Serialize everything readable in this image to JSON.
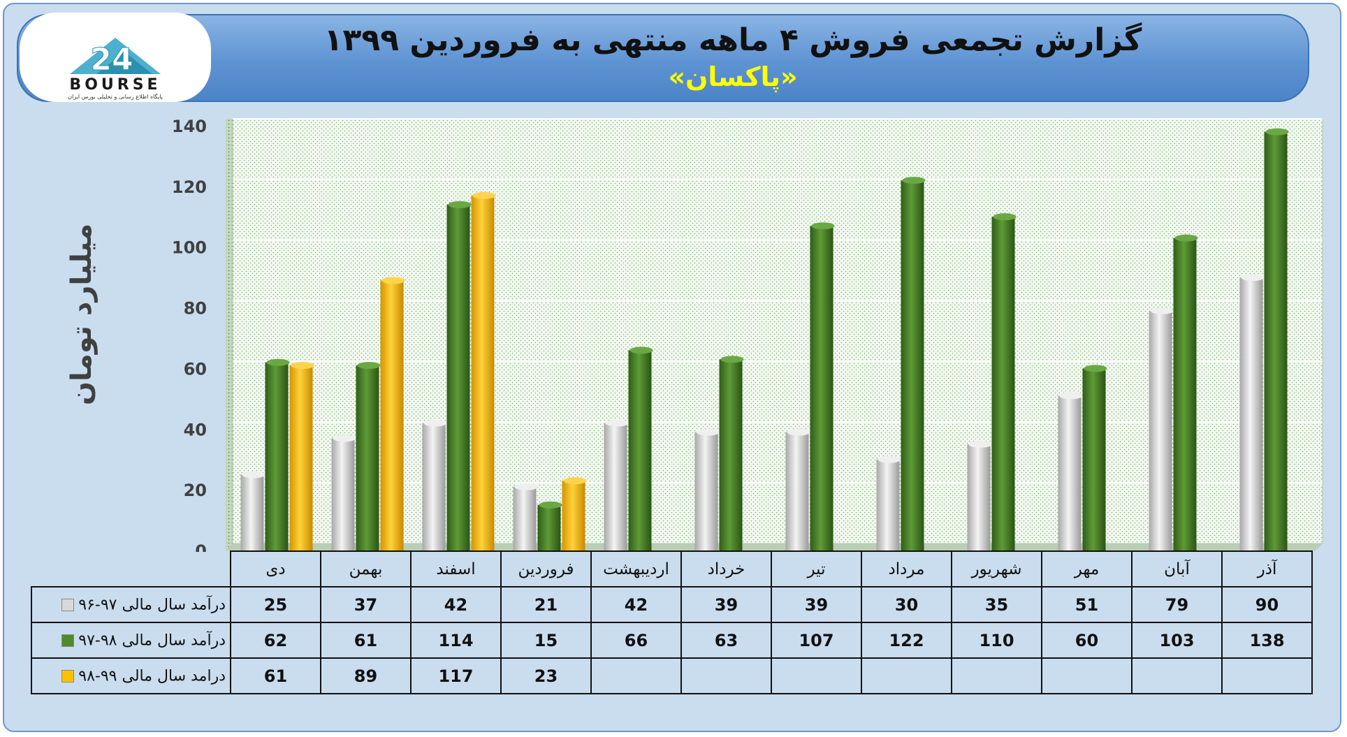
{
  "header": {
    "title": "گزارش تجمعی فروش ۴ ماهه منتهی به فروردین ۱۳۹۹",
    "subtitle": "«پاکسان»"
  },
  "logo": {
    "name": "24BOURSE",
    "wordmark": "BOURSE",
    "number": "24",
    "tagline": "پایگاه اطلاع رسانی و تحلیلی بورس ایران"
  },
  "chart_data": {
    "type": "bar",
    "ylabel": "میلیارد تومان",
    "ylim": [
      0,
      140
    ],
    "yticks": [
      0,
      20,
      40,
      60,
      80,
      100,
      120,
      140
    ],
    "grid": true,
    "categories": [
      "دی",
      "بهمن",
      "اسفند",
      "فروردین",
      "اردیبهشت",
      "خرداد",
      "تیر",
      "مرداد",
      "شهریور",
      "مهر",
      "آبان",
      "آذر"
    ],
    "series": [
      {
        "name": "درآمد سال مالی ۹۷-۹۶",
        "color": "#d9d9d9",
        "values": [
          25,
          37,
          42,
          21,
          42,
          39,
          39,
          30,
          35,
          51,
          79,
          90
        ]
      },
      {
        "name": "درآمد سال مالی ۹۸-۹۷",
        "color": "#4f8a2b",
        "values": [
          62,
          61,
          114,
          15,
          66,
          63,
          107,
          122,
          110,
          60,
          103,
          138
        ]
      },
      {
        "name": "درامد سال مالی ۹۹-۹۸",
        "color": "#ffc000",
        "values": [
          61,
          89,
          117,
          23,
          null,
          null,
          null,
          null,
          null,
          null,
          null,
          null
        ]
      }
    ]
  }
}
